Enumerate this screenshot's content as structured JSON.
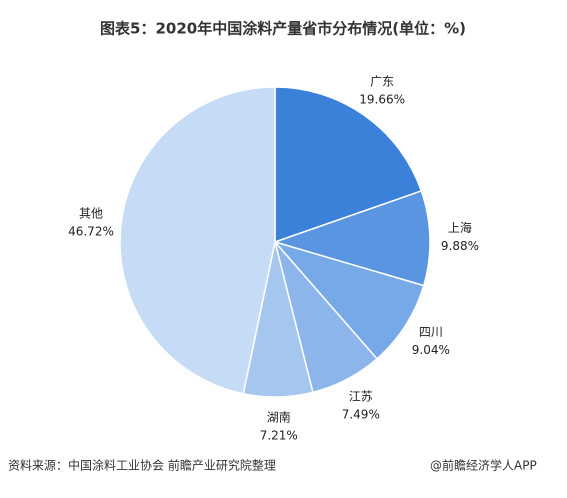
{
  "chart_data": {
    "type": "pie",
    "title": "图表5：2020年中国涂料产量省市分布情况(单位：%)",
    "categories": [
      "广东",
      "上海",
      "四川",
      "江苏",
      "湖南",
      "其他"
    ],
    "values": [
      19.66,
      9.88,
      9.04,
      7.49,
      7.21,
      46.72
    ],
    "value_labels": [
      "19.66%",
      "9.88%",
      "9.04%",
      "7.49%",
      "7.21%",
      "46.72%"
    ],
    "colors": [
      "#3b80d9",
      "#5a95e1",
      "#77a8e7",
      "#8cb6eb",
      "#a5c6ef",
      "#c5dbf6"
    ],
    "source": "资料来源：中国涂料工业协会 前瞻产业研究院整理",
    "credit": "@前瞻经济学人APP"
  }
}
